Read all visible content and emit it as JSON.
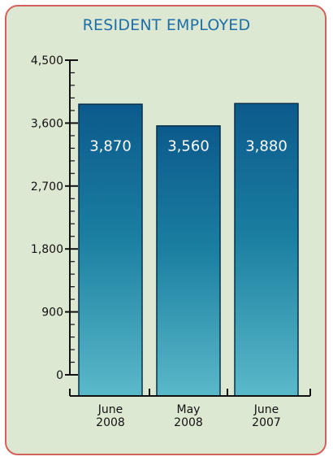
{
  "chart_data": {
    "type": "bar",
    "title": "RESIDENT EMPLOYED",
    "categories": [
      [
        "June",
        "2008"
      ],
      [
        "May",
        "2008"
      ],
      [
        "June",
        "2007"
      ]
    ],
    "values": [
      3870,
      3560,
      3880
    ],
    "value_labels": [
      "3,870",
      "3,560",
      "3,880"
    ],
    "yticks": [
      0,
      900,
      1800,
      2700,
      3600,
      4500
    ],
    "ytick_labels": [
      "0",
      "900",
      "1,800",
      "2,700",
      "3,600",
      "4,500"
    ],
    "ylim": [
      0,
      4500
    ],
    "minor_tick_step": 180,
    "xlabel": "",
    "ylabel": "",
    "grid": false,
    "colors": {
      "bar_top": "#0c5a8c",
      "bar_mid": "#1a7ea0",
      "bar_bottom": "#5ab9c9",
      "bar_edge": "#0a2f49",
      "axis": "#111111",
      "background": "#dde8d3",
      "border": "#d4625c",
      "title": "#1e6fa8"
    }
  }
}
